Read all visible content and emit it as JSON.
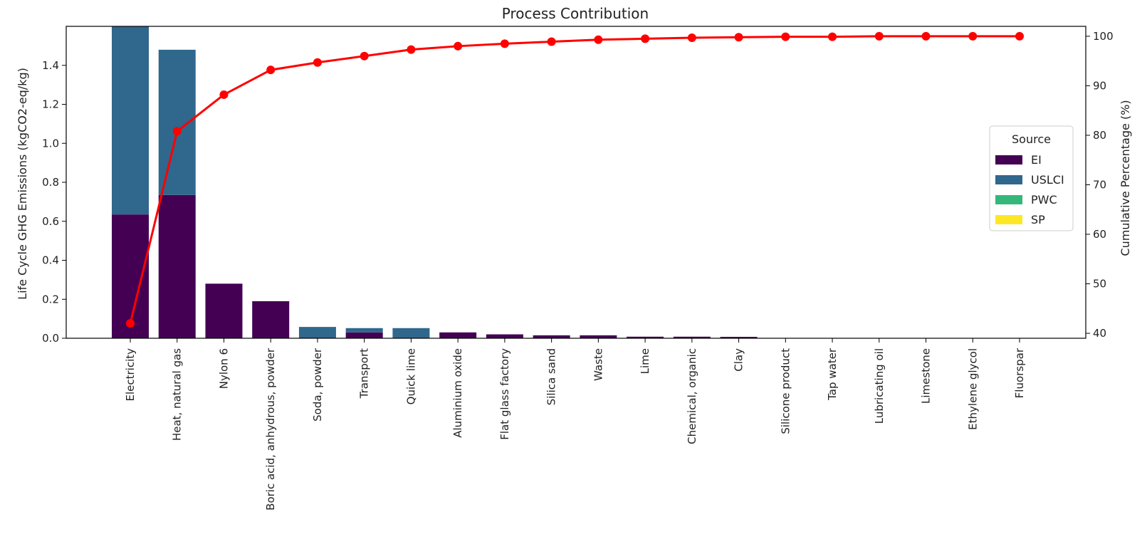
{
  "chart_data": {
    "type": "bar",
    "title": "Process Contribution",
    "xlabel": "",
    "ylabel": "Life Cycle GHG Emissions (kgCO2-eq/kg)",
    "y2label": "Cumulative Percentage (%)",
    "ylim": [
      0,
      1.6
    ],
    "y2lim": [
      39,
      102
    ],
    "yticks": [
      0.0,
      0.2,
      0.4,
      0.6,
      0.8,
      1.0,
      1.2,
      1.4
    ],
    "yticklabels": [
      "0.0",
      "0.2",
      "0.4",
      "0.6",
      "0.8",
      "1.0",
      "1.2",
      "1.4"
    ],
    "y2ticks": [
      40,
      50,
      60,
      70,
      80,
      90,
      100
    ],
    "y2ticklabels": [
      "40",
      "50",
      "60",
      "70",
      "80",
      "90",
      "100"
    ],
    "stacked": true,
    "grid": false,
    "categories": [
      "Electricity",
      "Heat, natural gas",
      "Nylon 6",
      "Boric acid, anhydrous, powder",
      "Soda, powder",
      "Transport",
      "Quick lime",
      "Aluminium oxide",
      "Flat glass factory",
      "Silica sand",
      "Waste",
      "Lime",
      "Chemical, organic",
      "Clay",
      "Silicone product",
      "Tap water",
      "Lubricating oil",
      "Limestone",
      "Ethylene glycol",
      "Fluorspar"
    ],
    "series": [
      {
        "name": "EI",
        "color": "#440154",
        "values": [
          0.635,
          0.735,
          0.28,
          0.19,
          0.0,
          0.03,
          0.0,
          0.03,
          0.02,
          0.015,
          0.015,
          0.008,
          0.008,
          0.007,
          0.001,
          0.001,
          0.001,
          0.001,
          0.001,
          0.001
        ]
      },
      {
        "name": "USLCI",
        "color": "#30678d",
        "values": [
          0.965,
          0.745,
          0.0,
          0.0,
          0.058,
          0.022,
          0.052,
          0.0,
          0.0,
          0.0,
          0.0,
          0.0,
          0.0,
          0.0,
          0.0,
          0.0,
          0.0,
          0.0,
          0.0,
          0.0
        ]
      },
      {
        "name": "PWC",
        "color": "#35b779",
        "values": [
          0,
          0,
          0,
          0,
          0,
          0,
          0,
          0,
          0,
          0,
          0,
          0,
          0,
          0,
          0,
          0,
          0,
          0,
          0,
          0
        ]
      },
      {
        "name": "SP",
        "color": "#fde725",
        "values": [
          0,
          0,
          0,
          0,
          0,
          0,
          0,
          0,
          0,
          0,
          0,
          0,
          0,
          0,
          0,
          0,
          0,
          0,
          0,
          0
        ]
      }
    ],
    "cumulative": {
      "color": "#ff0000",
      "values": [
        42.0,
        80.8,
        88.2,
        93.2,
        94.7,
        96.0,
        97.3,
        98.0,
        98.5,
        98.9,
        99.3,
        99.5,
        99.7,
        99.8,
        99.9,
        99.9,
        100.0,
        100.0,
        100.0,
        100.0
      ]
    },
    "legend": {
      "title": "Source",
      "placement": "center-right",
      "entries": [
        "EI",
        "USLCI",
        "PWC",
        "SP"
      ]
    }
  }
}
